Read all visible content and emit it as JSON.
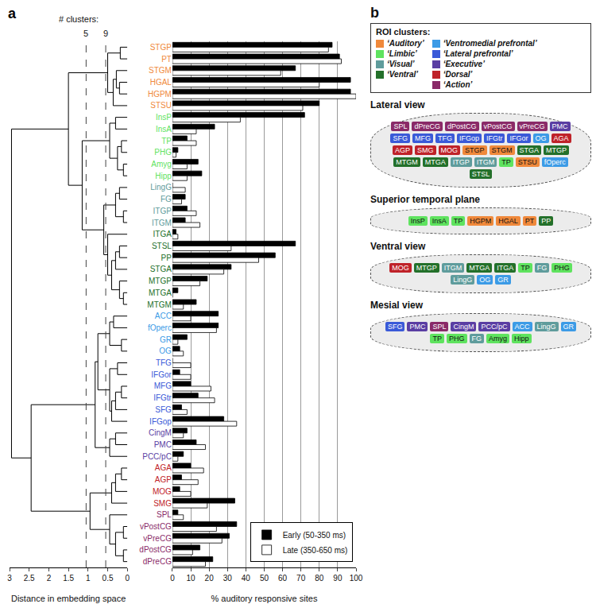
{
  "chart_data": {
    "type": "bar",
    "orientation": "horizontal",
    "panel_label": "a",
    "categories": [
      "STGP",
      "PT",
      "STGM",
      "HGAL",
      "HGPM",
      "STSU",
      "InsP",
      "InsA",
      "TP",
      "PHG",
      "Amyg",
      "Hipp",
      "LingG",
      "FG",
      "ITGP",
      "ITGM",
      "ITGA",
      "STSL",
      "PP",
      "STGA",
      "MTGP",
      "MTGA",
      "MTGM",
      "ACC",
      "fOperc",
      "GR",
      "OG",
      "TFG",
      "IFGor",
      "MFG",
      "IFGtr",
      "SFG",
      "IFGop",
      "CingM",
      "PMC",
      "PCC/pC",
      "AGA",
      "AGP",
      "MOG",
      "SMG",
      "SPL",
      "vPostCG",
      "vPreCG",
      "dPostCG",
      "dPreCG"
    ],
    "series": [
      {
        "name": "Early (50-350 ms)",
        "color": "#000000",
        "values": [
          87,
          91,
          67,
          97,
          97,
          80,
          72,
          23,
          8,
          3,
          14,
          16,
          0,
          7,
          8,
          7,
          2,
          67,
          56,
          32,
          19,
          3,
          13,
          25,
          25,
          8,
          4,
          0,
          4,
          10,
          14,
          5,
          28,
          8,
          13,
          6,
          10,
          5,
          4,
          34,
          3,
          35,
          31,
          15,
          22
        ]
      },
      {
        "name": "Late (350-650 ms)",
        "color": "#ffffff",
        "values": [
          85,
          92,
          59,
          80,
          100,
          71,
          37,
          13,
          13,
          2,
          8,
          8,
          7,
          5,
          13,
          15,
          3,
          32,
          47,
          28,
          15,
          0,
          6,
          10,
          24,
          3,
          6,
          10,
          10,
          21,
          23,
          8,
          35,
          6,
          18,
          3,
          17,
          14,
          10,
          19,
          6,
          24,
          27,
          11,
          18
        ]
      }
    ],
    "clusters": [
      {
        "name": "‘Auditory’",
        "color": "#f0893b",
        "members": [
          "STGP",
          "PT",
          "STGM",
          "HGAL",
          "HGPM",
          "STSU"
        ]
      },
      {
        "name": "‘Limbic’",
        "color": "#5fe35f",
        "members": [
          "InsP",
          "InsA",
          "TP",
          "PHG",
          "Amyg",
          "Hipp"
        ]
      },
      {
        "name": "‘Visual’",
        "color": "#5f9c9c",
        "members": [
          "LingG",
          "FG",
          "ITGP",
          "ITGM"
        ]
      },
      {
        "name": "‘Ventral’",
        "color": "#23702a",
        "members": [
          "ITGA",
          "STSL",
          "PP",
          "STGA",
          "MTGP",
          "MTGA",
          "MTGM"
        ]
      },
      {
        "name": "‘Ventromedial prefrontal’",
        "color": "#3c9be6",
        "members": [
          "ACC",
          "fOperc",
          "GR",
          "OG"
        ]
      },
      {
        "name": "‘Lateral prefrontal’",
        "color": "#3a5ad8",
        "members": [
          "TFG",
          "IFGor",
          "MFG",
          "IFGtr",
          "SFG",
          "IFGop"
        ]
      },
      {
        "name": "‘Executive’",
        "color": "#5a3ea3",
        "members": [
          "CingM",
          "PMC",
          "PCC/pC"
        ]
      },
      {
        "name": "‘Dorsal’",
        "color": "#bf2229",
        "members": [
          "AGA",
          "AGP",
          "MOG",
          "SMG"
        ]
      },
      {
        "name": "‘Action’",
        "color": "#8a2a68",
        "members": [
          "SPL",
          "vPostCG",
          "vPreCG",
          "dPostCG",
          "dPreCG"
        ]
      }
    ],
    "xlim": [
      0,
      100
    ],
    "xticks": [
      0,
      10,
      20,
      30,
      40,
      50,
      60,
      70,
      80,
      90,
      100
    ],
    "xlabel": "% auditory responsive sites",
    "grid": true,
    "legend": "lower right",
    "dendrogram": {
      "xlim": [
        3,
        0
      ],
      "xticks": [
        3,
        2.5,
        2,
        1.5,
        1,
        0.5,
        0
      ],
      "xlabel": "Distance in embedding space",
      "cluster_cuts_title": "# clusters:",
      "cluster_cuts": [
        {
          "value": 1.05,
          "label": "5"
        },
        {
          "value": 0.55,
          "label": "9"
        }
      ],
      "tree": {
        "height": 2.95,
        "children": [
          {
            "height": 1.5,
            "children": [
              {
                "height": 0.5,
                "children": [
                  {
                    "height": 0.18,
                    "children": [
                      "STGP",
                      "PT"
                    ]
                  },
                  {
                    "height": 0.36,
                    "children": [
                      {
                        "height": 0.28,
                        "children": [
                          "STGM",
                          {
                            "height": 0.2,
                            "children": [
                              "HGAL",
                              "HGPM"
                            ]
                          }
                        ]
                      },
                      "STSU"
                    ]
                  }
                ]
              },
              {
                "height": 1.15,
                "children": [
                  {
                    "height": 0.45,
                    "children": [
                      {
                        "height": 0.3,
                        "children": [
                          "InsP",
                          "InsA"
                        ]
                      },
                      {
                        "height": 0.25,
                        "children": [
                          {
                            "height": 0.15,
                            "children": [
                              "TP",
                              "PHG"
                            ]
                          },
                          {
                            "height": 0.1,
                            "children": [
                              "Amyg",
                              "Hipp"
                            ]
                          }
                        ]
                      }
                    ]
                  },
                  {
                    "height": 0.6,
                    "children": [
                      {
                        "height": 0.3,
                        "children": [
                          {
                            "height": 0.2,
                            "children": [
                              "LingG",
                              "FG"
                            ]
                          },
                          {
                            "height": 0.1,
                            "children": [
                              "ITGP",
                              "ITGM"
                            ]
                          }
                        ]
                      },
                      {
                        "height": 0.5,
                        "children": [
                          "ITGA",
                          {
                            "height": 0.4,
                            "children": [
                              {
                                "height": 0.3,
                                "children": [
                                  {
                                    "height": 0.2,
                                    "children": [
                                      "STSL",
                                      "PP"
                                    ]
                                  },
                                  "STGA"
                                ]
                              },
                              {
                                "height": 0.2,
                                "children": [
                                  "MTGP",
                                  {
                                    "height": 0.1,
                                    "children": [
                                      "MTGA",
                                      "MTGM"
                                    ]
                                  }
                                ]
                              }
                            ]
                          }
                        ]
                      }
                    ]
                  }
                ]
              }
            ]
          },
          {
            "height": 2.45,
            "children": [
              {
                "height": 0.82,
                "children": [
                  {
                    "height": 0.75,
                    "children": [
                      {
                        "height": 0.45,
                        "children": [
                          {
                            "height": 0.35,
                            "children": [
                              "ACC",
                              "fOperc"
                            ]
                          },
                          {
                            "height": 0.15,
                            "children": [
                              "GR",
                              "OG"
                            ]
                          }
                        ]
                      },
                      {
                        "height": 0.45,
                        "children": [
                          {
                            "height": 0.25,
                            "children": [
                              "TFG",
                              "IFGor"
                            ]
                          },
                          {
                            "height": 0.4,
                            "children": [
                              {
                                "height": 0.3,
                                "children": [
                                  {
                                    "height": 0.15,
                                    "children": [
                                      "MFG",
                                      "IFGtr"
                                    ]
                                  },
                                  "SFG"
                                ]
                              },
                              "IFGop"
                            ]
                          }
                        ]
                      }
                    ]
                  },
                  {
                    "height": 0.45,
                    "children": [
                      {
                        "height": 0.3,
                        "children": [
                          "CingM",
                          "PMC"
                        ]
                      },
                      "PCC/pC"
                    ]
                  }
                ]
              },
              {
                "height": 0.95,
                "children": [
                  {
                    "height": 0.4,
                    "children": [
                      {
                        "height": 0.3,
                        "children": [
                          {
                            "height": 0.15,
                            "children": [
                              "AGA",
                              "AGP"
                            ]
                          },
                          "MOG"
                        ]
                      },
                      "SMG"
                    ]
                  },
                  {
                    "height": 0.45,
                    "children": [
                      "SPL",
                      {
                        "height": 0.3,
                        "children": [
                          {
                            "height": 0.1,
                            "children": [
                              "vPostCG",
                              "vPreCG"
                            ]
                          },
                          {
                            "height": 0.1,
                            "children": [
                              "dPostCG",
                              "dPreCG"
                            ]
                          }
                        ]
                      }
                    ]
                  }
                ]
              }
            ]
          }
        ]
      }
    }
  },
  "diagram": {
    "panel_label": "b",
    "legend_title": "ROI clusters:",
    "views": [
      {
        "title": "Lateral view",
        "regions": [
          "SPL",
          "dPreCG",
          "dPostCG",
          "vPostCG",
          "vPreCG",
          "PMC",
          "SFG",
          "MFG",
          "TFG",
          "IFGop",
          "IFGtr",
          "IFGor",
          "OG",
          "AGA",
          "AGP",
          "SMG",
          "MOG",
          "STGP",
          "STGM",
          "STGA",
          "MTGP",
          "MTGM",
          "MTGA",
          "ITGP",
          "ITGM",
          "TP",
          "STSU",
          "fOperc",
          "STSL"
        ]
      },
      {
        "title": "Superior temporal plane",
        "regions": [
          "InsP",
          "InsA",
          "TP",
          "HGPM",
          "HGAL",
          "PT",
          "PP"
        ]
      },
      {
        "title": "Ventral view",
        "regions": [
          "MOG",
          "MTGP",
          "ITGM",
          "MTGA",
          "ITGA",
          "TP",
          "FG",
          "PHG",
          "LingG",
          "OG",
          "GR"
        ]
      },
      {
        "title": "Mesial view",
        "regions": [
          "SFG",
          "PMC",
          "SPL",
          "CingM",
          "PCC/pC",
          "ACC",
          "LingG",
          "GR",
          "TP",
          "PHG",
          "FG",
          "Amyg",
          "Hipp"
        ]
      }
    ]
  }
}
